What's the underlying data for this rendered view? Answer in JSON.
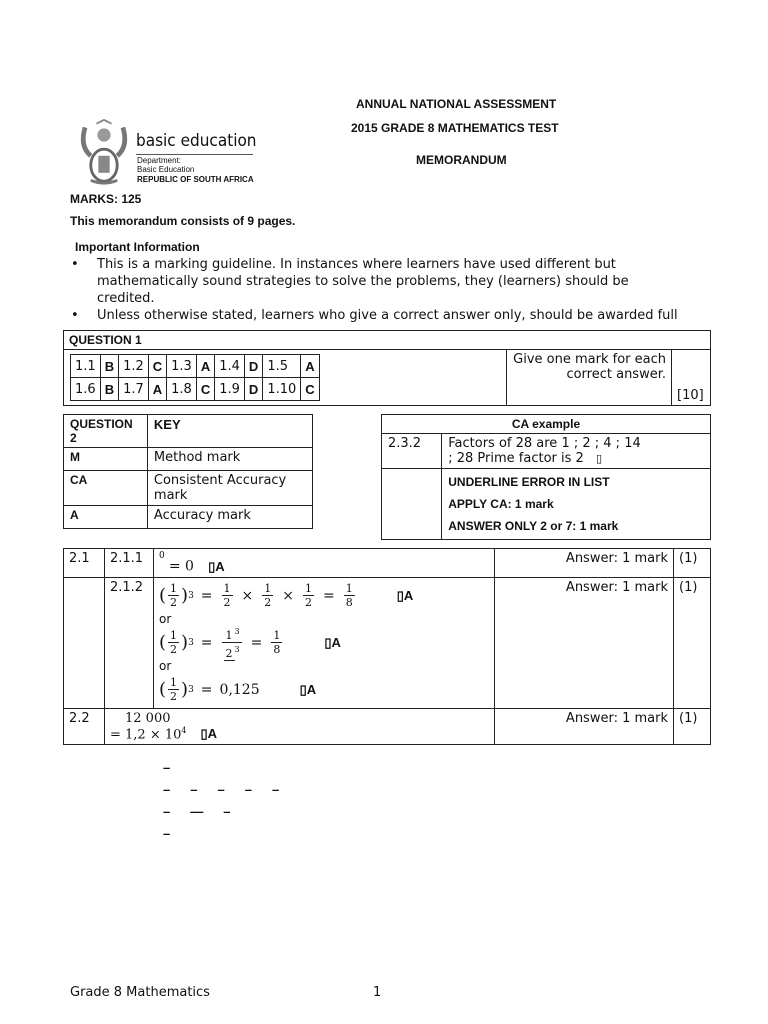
{
  "header": {
    "line1": "ANNUAL NATIONAL ASSESSMENT",
    "line2": "2015 GRADE 8 MATHEMATICS TEST",
    "line3": "MEMORANDUM"
  },
  "logo": {
    "name": "basic education",
    "dept": "Department:",
    "dept2": "Basic Education",
    "country": "REPUBLIC OF SOUTH AFRICA"
  },
  "marks": "MARKS: 125",
  "pages_note": "This memorandum consists of 9 pages.",
  "important": {
    "heading": "Important Information",
    "bullet1_line1": "This is a marking guideline.  In instances where learners have used different but",
    "bullet1_line2": "mathematically sound strategies to solve the problems, they (learners) should be",
    "bullet1_line3": "credited.",
    "bullet2": "Unless otherwise stated, learners who give a correct answer only, should be awarded full",
    "bullet_char": "•"
  },
  "question1": {
    "title": "QUESTION 1",
    "rows": [
      [
        {
          "q": "1.1",
          "a": "B"
        },
        {
          "q": "1.2",
          "a": "C"
        },
        {
          "q": "1.3",
          "a": "A"
        },
        {
          "q": "1.4",
          "a": "D"
        },
        {
          "q": "1.5",
          "a": "A"
        }
      ],
      [
        {
          "q": "1.6",
          "a": "B"
        },
        {
          "q": "1.7",
          "a": "A"
        },
        {
          "q": "1.8",
          "a": "C"
        },
        {
          "q": "1.9",
          "a": "D"
        },
        {
          "q": "1.10",
          "a": "C"
        }
      ]
    ],
    "note_line1": "Give one mark for each",
    "note_line2": "correct answer.",
    "total": "[10]"
  },
  "key": {
    "q2_title": "QUESTION 2",
    "title": "KEY",
    "items": [
      {
        "code": "M",
        "label": "Method mark"
      },
      {
        "code": "CA",
        "label": "Consistent Accuracy",
        "label2": "mark"
      },
      {
        "code": "A",
        "label": "Accuracy mark"
      }
    ]
  },
  "ca_example": {
    "title": "CA example",
    "num": "2.3.2",
    "line1": "Factors of 28 are 1 ; 2 ; 4 ; 14",
    "line2": "; 28 Prime factor is 2",
    "tick": "▯",
    "line3": "UNDERLINE ERROR IN LIST",
    "line4": "APPLY CA: 1 mark",
    "line5": "ANSWER ONLY 2 or 7: 1 mark"
  },
  "question2": {
    "q21": "2.1",
    "q211": "2.1.1",
    "q212": "2.1.2",
    "q211_expr": "= 0",
    "q211_exp": "0",
    "mark_A": "▯A",
    "or": "or",
    "expr1": {
      "a": "1",
      "b": "3",
      "eq": "=",
      "c": "1",
      "d": "1",
      "e": "1",
      "f": "1",
      "x": "×",
      "den": "2",
      "den8": "8",
      "paren": "("
    },
    "expr2": {
      "a": "1",
      "b": "3",
      "c": "1",
      "c_exp": "3",
      "d": "1",
      "den": "2",
      "den2": "2",
      "den2_exp": "3",
      "den8": "8",
      "eq": "="
    },
    "expr3": {
      "a": "1",
      "b": "3",
      "den": "2",
      "eq": "=",
      "val": "0,125"
    },
    "answer_mark": "Answer: 1 mark",
    "score": "(1)",
    "q22": "2.2",
    "q22_val": "12 000",
    "q22_ans": "= 1,2  ×  10",
    "q22_exp": "4"
  },
  "dashes": {
    "d": "–",
    "long": "—"
  },
  "footer": {
    "left": "Grade 8 Mathematics",
    "page": "1"
  }
}
